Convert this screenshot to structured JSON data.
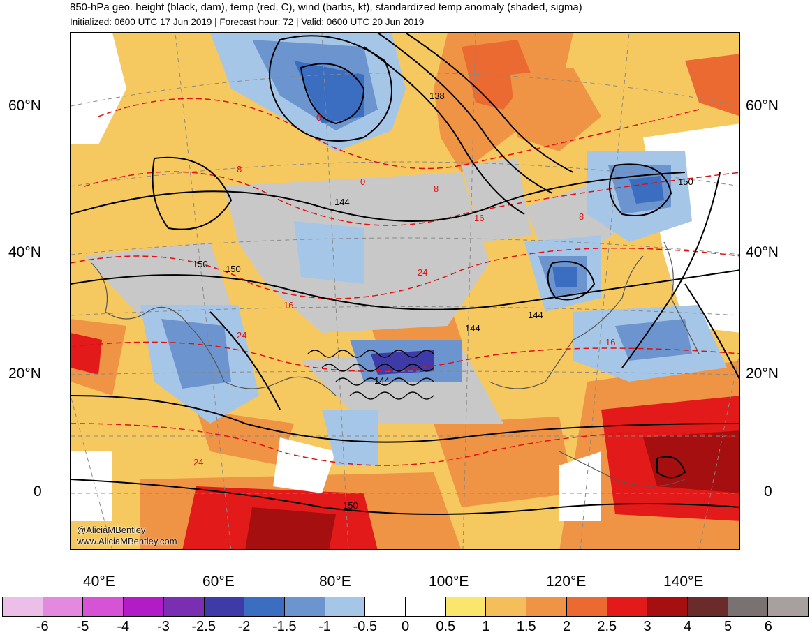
{
  "header": {
    "title": "850-hPa geo. height (black, dam), temp (red, C), wind (barbs, kt), standardized temp anomaly (shaded, sigma)",
    "subtitle": "Initialized: 0600 UTC 17 Jun 2019 | Forecast hour: 72 | Valid: 0600 UTC 20 Jun 2019"
  },
  "map": {
    "lat_labels": [
      "60°N",
      "40°N",
      "20°N",
      "0"
    ],
    "lon_labels": [
      "40°E",
      "60°E",
      "80°E",
      "100°E",
      "120°E",
      "140°E"
    ],
    "height_contour_labels": [
      "138",
      "144",
      "150",
      "150",
      "150",
      "144",
      "144",
      "144",
      "150"
    ],
    "temp_contour_labels": [
      "0",
      "8",
      "8",
      "16",
      "8",
      "24",
      "16",
      "24",
      "16",
      "24",
      "0"
    ],
    "credits": [
      "@AliciaMBentley",
      "www.AliciaMBentley.com"
    ]
  },
  "legend": {
    "title": "standardized temp anomaly (shaded, sigma)",
    "colors": [
      "#ecbfe8",
      "#e38ae0",
      "#d653d6",
      "#b21cc7",
      "#7a2fb2",
      "#3e3aa8",
      "#3b6ec0",
      "#6c94cf",
      "#a5c6e6",
      "#ffffff",
      "#ffffff",
      "#fbe66d",
      "#f4bf5b",
      "#ef9445",
      "#ea6a32",
      "#e21a1a",
      "#a50f0f",
      "#6c2b2b",
      "#7a7272",
      "#a89f9f"
    ],
    "ticks": [
      "-6",
      "-5",
      "-4",
      "-3",
      "-2.5",
      "-2",
      "-1.5",
      "-1",
      "-0.5",
      "0",
      "0.5",
      "1",
      "1.5",
      "2",
      "2.5",
      "3",
      "4",
      "5",
      "6"
    ]
  }
}
